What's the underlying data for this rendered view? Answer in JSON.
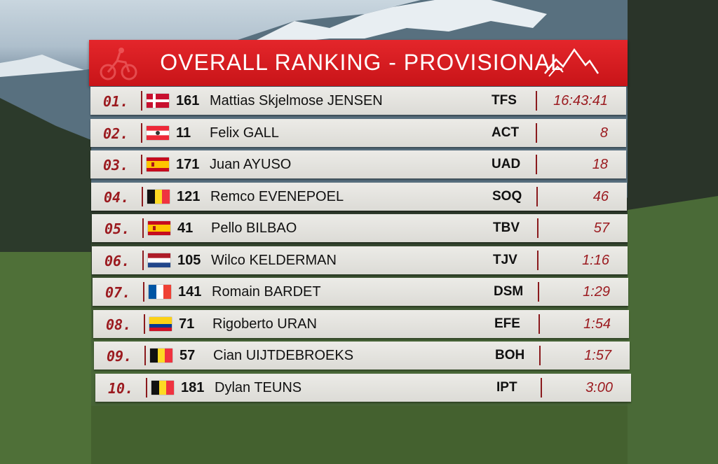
{
  "header": {
    "title": "OVERALL RANKING - PROVISIONAL"
  },
  "colors": {
    "accent": "#d41b20",
    "rank_text": "#9b1a1f",
    "row_bg": "#e6e5e1"
  },
  "rows": [
    {
      "rank": "01.",
      "flag": "denmark-flag",
      "num": "161",
      "name": "Mattias Skjelmose JENSEN",
      "team": "TFS",
      "time": "16:43:41"
    },
    {
      "rank": "02.",
      "flag": "austria-flag",
      "num": "11",
      "name": "Felix GALL",
      "team": "ACT",
      "time": "8"
    },
    {
      "rank": "03.",
      "flag": "spain-flag",
      "num": "171",
      "name": "Juan AYUSO",
      "team": "UAD",
      "time": "18"
    },
    {
      "rank": "04.",
      "flag": "belgium-flag",
      "num": "121",
      "name": "Remco EVENEPOEL",
      "team": "SOQ",
      "time": "46"
    },
    {
      "rank": "05.",
      "flag": "spain-flag",
      "num": "41",
      "name": "Pello BILBAO",
      "team": "TBV",
      "time": "57"
    },
    {
      "rank": "06.",
      "flag": "netherlands-flag",
      "num": "105",
      "name": "Wilco KELDERMAN",
      "team": "TJV",
      "time": "1:16"
    },
    {
      "rank": "07.",
      "flag": "france-flag",
      "num": "141",
      "name": "Romain BARDET",
      "team": "DSM",
      "time": "1:29"
    },
    {
      "rank": "08.",
      "flag": "colombia-flag",
      "num": "71",
      "name": "Rigoberto URAN",
      "team": "EFE",
      "time": "1:54"
    },
    {
      "rank": "09.",
      "flag": "belgium-flag",
      "num": "57",
      "name": "Cian UIJTDEBROEKS",
      "team": "BOH",
      "time": "1:57"
    },
    {
      "rank": "10.",
      "flag": "belgium-flag",
      "num": "181",
      "name": "Dylan TEUNS",
      "team": "IPT",
      "time": "3:00"
    }
  ]
}
